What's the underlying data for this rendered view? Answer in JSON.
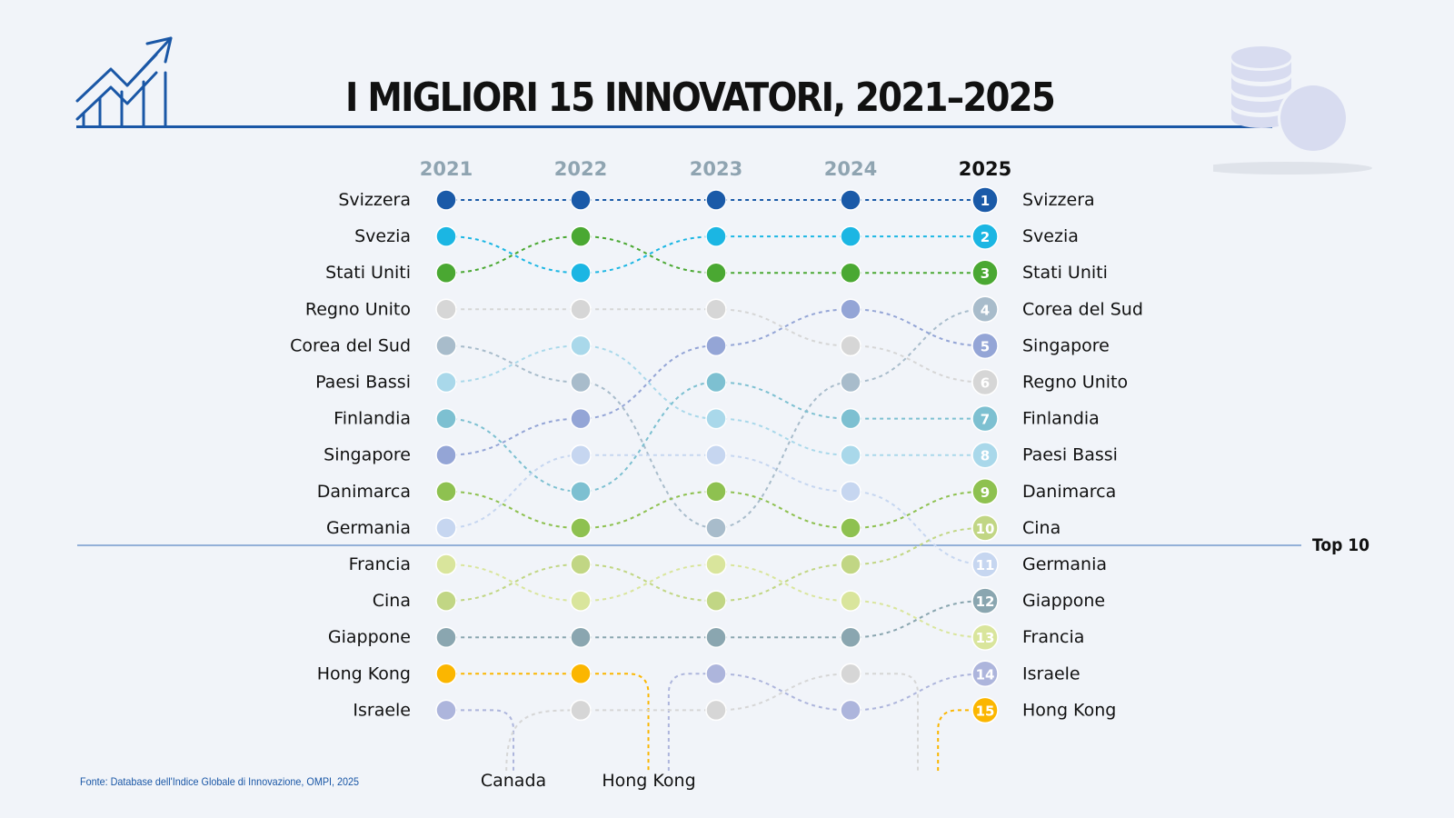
{
  "title": "I MIGLIORI 15 INNOVATORI, 2021–2025",
  "source": "Fonte: Database dell'Indice Globale di Innovazione, OMPI, 2025",
  "top10_label": "Top 10",
  "icons": {
    "left": "rising-chart-icon",
    "right": "coins-stack-icon"
  },
  "chart_data": {
    "type": "bump",
    "title": "I MIGLIORI 15 INNOVATORI, 2021–2025",
    "years": [
      "2021",
      "2022",
      "2023",
      "2024",
      "2025"
    ],
    "rank_range": [
      1,
      15
    ],
    "cutoff_rank": 10,
    "cutoff_label": "Top 10",
    "series": [
      {
        "name": "Svizzera",
        "color": "#1a5aa8",
        "ranks": [
          1,
          1,
          1,
          1,
          1
        ]
      },
      {
        "name": "Svezia",
        "color": "#1bb6e3",
        "ranks": [
          2,
          3,
          2,
          2,
          2
        ]
      },
      {
        "name": "Stati Uniti",
        "color": "#4aa832",
        "ranks": [
          3,
          2,
          3,
          3,
          3
        ]
      },
      {
        "name": "Regno Unito",
        "color": "#d6d6d6",
        "ranks": [
          4,
          4,
          4,
          5,
          6
        ]
      },
      {
        "name": "Corea del Sud",
        "color": "#a8bccb",
        "ranks": [
          5,
          6,
          10,
          6,
          4
        ]
      },
      {
        "name": "Paesi Bassi",
        "color": "#a9d8ea",
        "ranks": [
          6,
          5,
          7,
          8,
          8
        ]
      },
      {
        "name": "Finlandia",
        "color": "#7dc0d1",
        "ranks": [
          7,
          9,
          6,
          7,
          7
        ]
      },
      {
        "name": "Singapore",
        "color": "#94a5d6",
        "ranks": [
          8,
          7,
          5,
          4,
          5
        ]
      },
      {
        "name": "Danimarca",
        "color": "#8ec150",
        "ranks": [
          9,
          10,
          9,
          10,
          9
        ]
      },
      {
        "name": "Germania",
        "color": "#c6d6f0",
        "ranks": [
          10,
          8,
          8,
          9,
          11
        ]
      },
      {
        "name": "Francia",
        "color": "#d9e59c",
        "ranks": [
          11,
          12,
          11,
          12,
          13
        ]
      },
      {
        "name": "Cina",
        "color": "#c1d684",
        "ranks": [
          12,
          11,
          12,
          11,
          10
        ]
      },
      {
        "name": "Giappone",
        "color": "#8aa6b0",
        "ranks": [
          13,
          13,
          13,
          13,
          12
        ]
      },
      {
        "name": "Hong Kong",
        "color": "#fbb600",
        "ranks": [
          14,
          14,
          null,
          null,
          15
        ]
      },
      {
        "name": "Israele",
        "color": "#adb5dc",
        "ranks": [
          15,
          null,
          14,
          15,
          14
        ]
      },
      {
        "name": "Canada",
        "color": "#d6d6d6",
        "ranks": [
          null,
          15,
          15,
          14,
          null
        ]
      }
    ],
    "left_labels": [
      "Svizzera",
      "Svezia",
      "Stati Uniti",
      "Regno Unito",
      "Corea del Sud",
      "Paesi Bassi",
      "Finlandia",
      "Singapore",
      "Danimarca",
      "Germania",
      "Francia",
      "Cina",
      "Giappone",
      "Hong Kong",
      "Israele"
    ],
    "right_labels": [
      "Svizzera",
      "Svezia",
      "Stati Uniti",
      "Corea del Sud",
      "Singapore",
      "Regno Unito",
      "Finlandia",
      "Paesi Bassi",
      "Danimarca",
      "Cina",
      "Germania",
      "Giappone",
      "Francia",
      "Israele",
      "Hong Kong"
    ],
    "bottom_labels": [
      "Canada",
      "Hong Kong"
    ]
  }
}
